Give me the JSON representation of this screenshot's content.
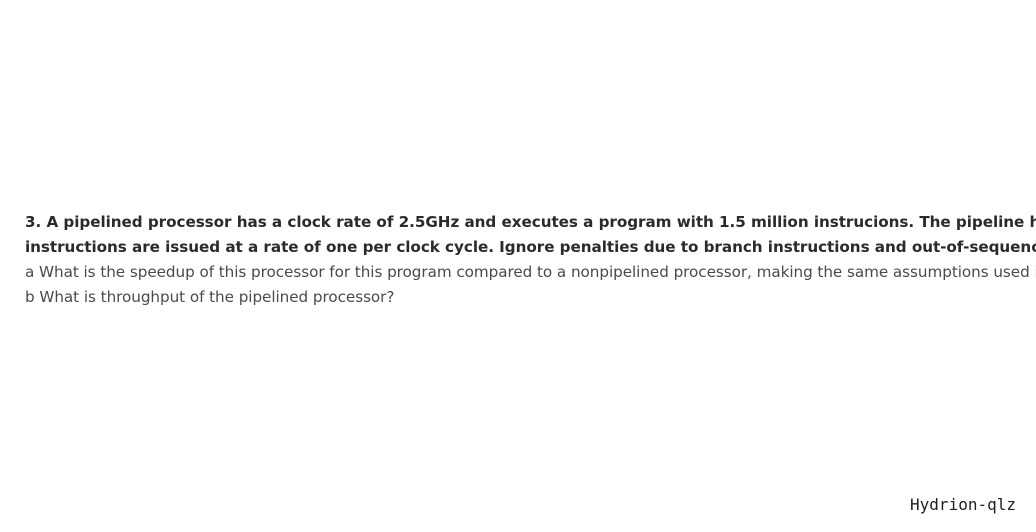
{
  "question": {
    "line1": "3. A pipelined processor has a clock rate of 2.5GHz and executes a program with 1.5 million instrucions. The pipeline has five sta",
    "line2": "instructions are issued at a rate of one per clock cycle. Ignore penalties due to branch instructions and out-of-sequence executi",
    "part_a": "a What is the speedup of  this processor for this program compared to a nonpipelined processor, making the same assumptions used in",
    "part_b": "b What is throughput of the pipelined processor?"
  },
  "watermark": "Hydrion-qlz"
}
